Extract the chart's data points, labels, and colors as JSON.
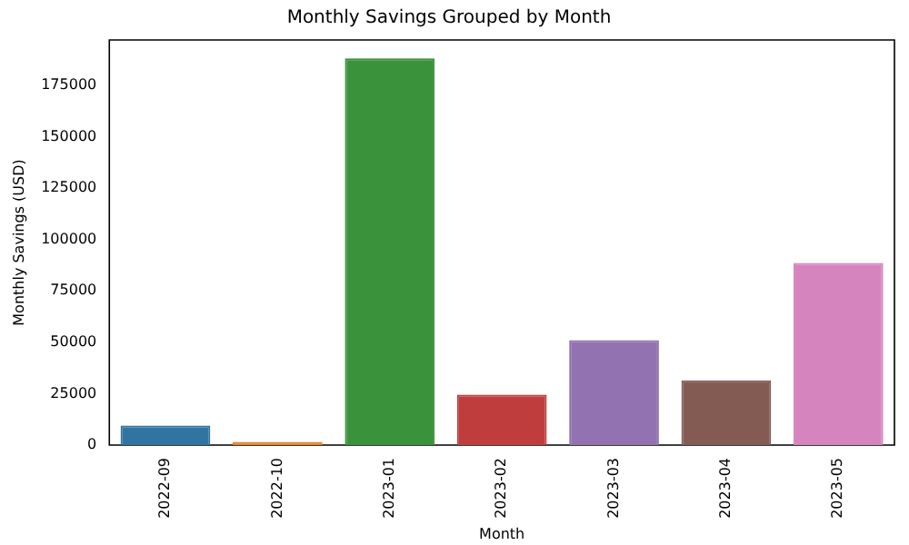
{
  "chart_data": {
    "type": "bar",
    "title": "Monthly Savings Grouped by Month",
    "xlabel": "Month",
    "ylabel": "Monthly Savings (USD)",
    "categories": [
      "2022-09",
      "2022-10",
      "2023-01",
      "2023-02",
      "2023-03",
      "2023-04",
      "2023-05"
    ],
    "values": [
      9500,
      1500,
      188000,
      24500,
      51000,
      31500,
      88500
    ],
    "colors": [
      "#3274a1",
      "#e1812c",
      "#3a923a",
      "#c03d3e",
      "#9372b2",
      "#845b53",
      "#d684bd"
    ],
    "ylim": [
      0,
      197000
    ],
    "yticks": [
      0,
      25000,
      50000,
      75000,
      100000,
      125000,
      150000,
      175000
    ],
    "grid": false,
    "legend": false
  }
}
